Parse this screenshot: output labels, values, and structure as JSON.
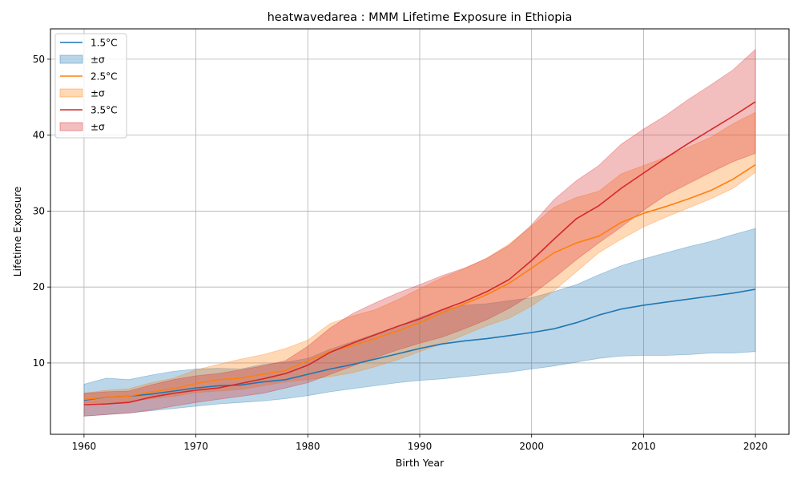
{
  "chart_data": {
    "type": "line",
    "title": "heatwavedarea : MMM Lifetime Exposure in Ethiopia",
    "xlabel": "Birth Year",
    "ylabel": "Lifetime Exposure",
    "xlim": [
      1957,
      2023
    ],
    "ylim": [
      0.6,
      54
    ],
    "xticks": [
      1960,
      1970,
      1980,
      1990,
      2000,
      2010,
      2020
    ],
    "yticks": [
      10,
      20,
      30,
      40,
      50
    ],
    "grid": true,
    "legend_position": "top-left",
    "band_label": "±σ",
    "x": [
      1960,
      1962,
      1964,
      1966,
      1968,
      1970,
      1972,
      1974,
      1976,
      1978,
      1980,
      1982,
      1984,
      1986,
      1988,
      1990,
      1992,
      1994,
      1996,
      1998,
      2000,
      2002,
      2004,
      2006,
      2008,
      2010,
      2012,
      2014,
      2016,
      2018,
      2020
    ],
    "series": [
      {
        "name": "1.5°C",
        "color": "#1f77b4",
        "values": [
          5.1,
          5.5,
          5.6,
          5.9,
          6.3,
          6.7,
          7.0,
          7.1,
          7.5,
          7.8,
          8.5,
          9.2,
          9.8,
          10.5,
          11.2,
          11.9,
          12.5,
          12.9,
          13.2,
          13.6,
          14.0,
          14.5,
          15.3,
          16.3,
          17.1,
          17.6,
          18.0,
          18.4,
          18.8,
          19.2,
          19.7
        ],
        "lower": [
          3.0,
          3.2,
          3.4,
          3.7,
          4.0,
          4.3,
          4.6,
          4.8,
          5.0,
          5.3,
          5.7,
          6.2,
          6.6,
          7.0,
          7.4,
          7.7,
          7.9,
          8.2,
          8.5,
          8.8,
          9.2,
          9.6,
          10.1,
          10.6,
          10.9,
          11.0,
          11.0,
          11.1,
          11.3,
          11.3,
          11.5
        ],
        "upper": [
          7.2,
          8.0,
          7.8,
          8.4,
          8.9,
          9.2,
          9.3,
          9.2,
          9.8,
          10.1,
          10.6,
          11.8,
          12.8,
          13.8,
          14.8,
          16.0,
          17.0,
          17.6,
          17.8,
          18.2,
          18.6,
          19.4,
          20.3,
          21.6,
          22.8,
          23.7,
          24.5,
          25.3,
          26.0,
          26.9,
          27.7
        ]
      },
      {
        "name": "2.5°C",
        "color": "#ff7f0e",
        "values": [
          5.2,
          5.5,
          5.6,
          6.2,
          6.6,
          7.3,
          7.8,
          8.0,
          8.5,
          9.0,
          10.3,
          11.5,
          12.3,
          13.2,
          14.2,
          15.3,
          16.6,
          17.8,
          19.0,
          20.5,
          22.5,
          24.5,
          25.8,
          26.7,
          28.5,
          29.7,
          30.6,
          31.6,
          32.7,
          34.2,
          36.1
        ],
        "lower": [
          4.7,
          4.8,
          4.9,
          5.3,
          5.6,
          6.1,
          6.3,
          6.5,
          7.0,
          7.5,
          7.8,
          8.2,
          8.7,
          9.5,
          10.4,
          11.5,
          12.5,
          13.7,
          14.9,
          15.9,
          17.5,
          19.5,
          22.0,
          24.5,
          26.3,
          27.9,
          29.2,
          30.4,
          31.6,
          33.0,
          35.1
        ],
        "upper": [
          6.0,
          6.4,
          6.6,
          7.4,
          8.0,
          9.1,
          9.8,
          10.5,
          11.1,
          11.9,
          13.0,
          15.2,
          16.2,
          17.0,
          18.3,
          19.8,
          21.2,
          22.4,
          23.8,
          25.7,
          28.0,
          30.5,
          31.8,
          32.6,
          34.9,
          36.0,
          37.1,
          38.4,
          39.7,
          41.5,
          43.0
        ]
      },
      {
        "name": "3.5°C",
        "color": "#d62728",
        "values": [
          4.5,
          4.6,
          4.8,
          5.5,
          6.0,
          6.4,
          6.7,
          7.3,
          7.9,
          8.6,
          9.7,
          11.4,
          12.6,
          13.7,
          14.8,
          15.8,
          17.0,
          18.1,
          19.4,
          21.0,
          23.5,
          26.3,
          29.0,
          30.7,
          33.0,
          35.0,
          37.0,
          38.9,
          40.7,
          42.5,
          44.4
        ],
        "lower": [
          3.0,
          3.2,
          3.4,
          3.8,
          4.3,
          4.8,
          5.2,
          5.6,
          6.0,
          6.7,
          7.4,
          8.5,
          9.6,
          10.7,
          11.7,
          12.6,
          13.4,
          14.5,
          15.7,
          17.2,
          19.0,
          21.2,
          23.6,
          25.8,
          27.9,
          30.1,
          32.1,
          33.6,
          35.1,
          36.5,
          37.6
        ],
        "upper": [
          6.0,
          6.2,
          6.3,
          7.1,
          7.8,
          8.3,
          8.6,
          9.1,
          9.6,
          10.3,
          12.2,
          14.6,
          16.5,
          17.9,
          19.2,
          20.3,
          21.5,
          22.5,
          23.8,
          25.5,
          28.2,
          31.5,
          34.0,
          36.0,
          38.8,
          40.8,
          42.6,
          44.7,
          46.6,
          48.6,
          51.3
        ]
      }
    ]
  }
}
